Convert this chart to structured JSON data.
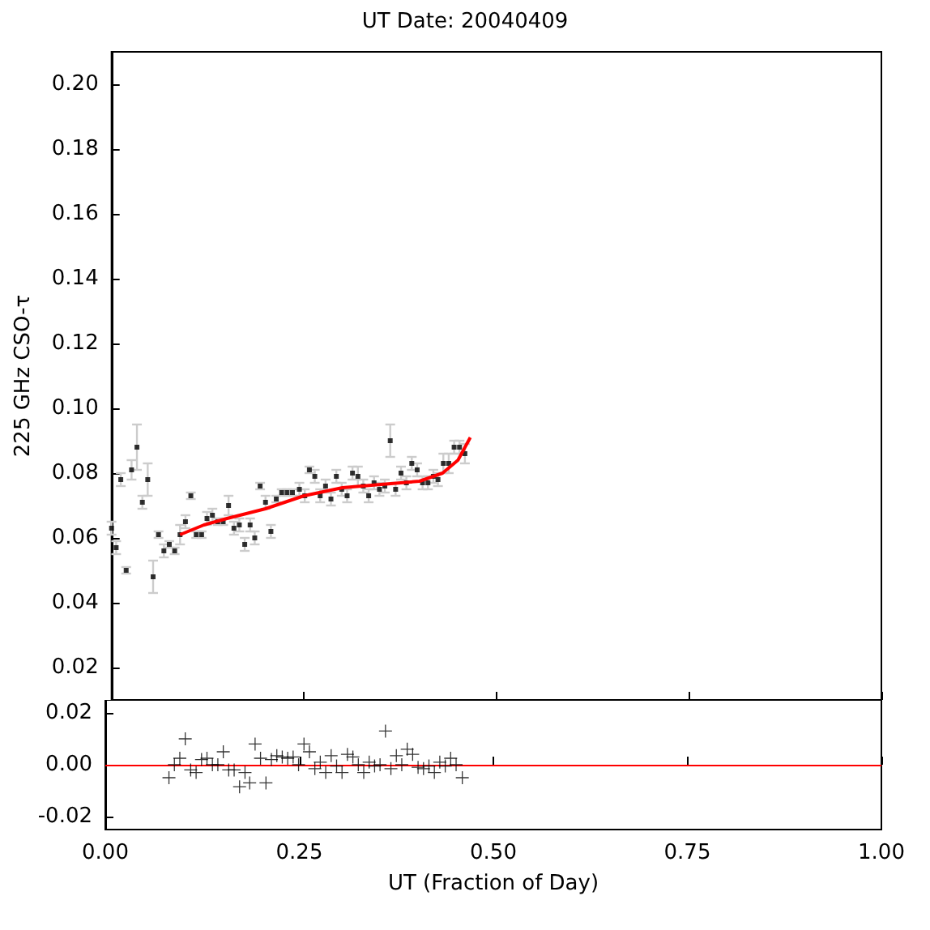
{
  "chart_data": [
    {
      "type": "scatter",
      "title": "UT Date: 20040409",
      "ylabel": "225 GHz CSO-τ",
      "xlim": [
        0,
        1
      ],
      "xticks": [
        {
          "value": 0,
          "label": null
        },
        {
          "value": 0.25,
          "label": null
        },
        {
          "value": 0.5,
          "label": null
        },
        {
          "value": 0.75,
          "label": null
        },
        {
          "value": 1,
          "label": null
        }
      ],
      "ylim": [
        0.01,
        0.21
      ],
      "yticks": [
        0.02,
        0.04,
        0.06,
        0.08,
        {
          "value": 0.1,
          "label": "0.10"
        },
        0.12,
        0.14,
        0.16,
        0.18,
        {
          "value": 0.2,
          "label": "0.20"
        }
      ],
      "tick_labels": "y",
      "series": [
        {
          "color": "#000000",
          "marker": "square",
          "x": [
            0,
            0.006,
            0.012,
            0.019,
            0.026,
            0.033,
            0.04,
            0.047,
            0.054,
            0.061,
            0.068,
            0.075,
            0.082,
            0.089,
            0.096,
            0.103,
            0.11,
            0.117,
            0.124,
            0.131,
            0.138,
            0.145,
            0.152,
            0.159,
            0.166,
            0.173,
            0.18,
            0.186,
            0.193,
            0.2,
            0.207,
            0.214,
            0.221,
            0.228,
            0.235,
            0.244,
            0.251,
            0.257,
            0.264,
            0.271,
            0.278,
            0.285,
            0.292,
            0.299,
            0.306,
            0.313,
            0.32,
            0.327,
            0.334,
            0.341,
            0.348,
            0.355,
            0.362,
            0.369,
            0.376,
            0.383,
            0.39,
            0.397,
            0.404,
            0.411,
            0.418,
            0.424,
            0.431,
            0.438,
            0.445,
            0.452,
            0.459
          ],
          "values": [
            0.063,
            0.057,
            0.078,
            0.05,
            0.081,
            0.088,
            0.071,
            0.078,
            0.048,
            0.061,
            0.056,
            0.058,
            0.056,
            0.061,
            0.065,
            0.073,
            0.061,
            0.061,
            0.066,
            0.067,
            0.065,
            0.065,
            0.07,
            0.063,
            0.064,
            0.058,
            0.064,
            0.06,
            0.076,
            0.071,
            0.062,
            0.072,
            0.074,
            0.074,
            0.074,
            0.075,
            0.073,
            0.081,
            0.079,
            0.073,
            0.076,
            0.072,
            0.079,
            0.075,
            0.073,
            0.08,
            0.079,
            0.076,
            0.073,
            0.077,
            0.075,
            0.076,
            0.09,
            0.075,
            0.08,
            0.077,
            0.083,
            0.081,
            0.077,
            0.077,
            0.079,
            0.078,
            0.083,
            0.083,
            0.088,
            0.088,
            0.086
          ],
          "errors": [
            0.002,
            0.002,
            0.002,
            0.001,
            0.003,
            0.007,
            0.002,
            0.005,
            0.005,
            0.001,
            0.002,
            0.001,
            0.001,
            0.003,
            0.002,
            0.001,
            0.001,
            0.001,
            0.002,
            0.002,
            0.001,
            0.001,
            0.003,
            0.002,
            0.002,
            0.002,
            0.002,
            0.002,
            0.001,
            0.002,
            0.002,
            0.001,
            0.001,
            0.001,
            0.001,
            0.002,
            0.002,
            0.001,
            0.002,
            0.002,
            0.002,
            0.002,
            0.002,
            0.002,
            0.002,
            0.002,
            0.003,
            0.002,
            0.002,
            0.002,
            0.002,
            0.002,
            0.005,
            0.002,
            0.002,
            0.002,
            0.002,
            0.002,
            0.002,
            0.002,
            0.002,
            0.002,
            0.003,
            0.003,
            0.002,
            0.002,
            0.003
          ]
        },
        {
          "type": "line",
          "color": "#ff0000",
          "marker": "none",
          "line_style": "solid",
          "x": [
            0.089,
            0.12,
            0.15,
            0.2,
            0.25,
            0.3,
            0.35,
            0.4,
            0.43,
            0.45,
            0.466
          ],
          "values": [
            0.061,
            0.064,
            0.066,
            0.069,
            0.073,
            0.0755,
            0.0765,
            0.0775,
            0.08,
            0.084,
            0.091
          ]
        }
      ]
    },
    {
      "type": "scatter",
      "xlabel": "UT (Fraction of Day)",
      "xlim": [
        0,
        1
      ],
      "xticks": [
        {
          "value": 0,
          "label": "0.00"
        },
        0.25,
        {
          "value": 0.5,
          "label": "0.50"
        },
        0.75,
        {
          "value": 1,
          "label": "1.00"
        }
      ],
      "ylim": [
        -0.025,
        0.025
      ],
      "yticks": [
        {
          "value": -0.02,
          "label": "-0.02"
        },
        {
          "value": 0,
          "label": "0.00"
        },
        0.02
      ],
      "ref_lines": [
        {
          "axis": "y",
          "value": 0,
          "color": "#ff0000"
        }
      ],
      "series": [
        {
          "color": "#000000",
          "marker": "cross",
          "x": [
            0.082,
            0.089,
            0.096,
            0.103,
            0.11,
            0.117,
            0.124,
            0.131,
            0.138,
            0.145,
            0.152,
            0.159,
            0.166,
            0.173,
            0.18,
            0.186,
            0.193,
            0.2,
            0.207,
            0.214,
            0.221,
            0.228,
            0.235,
            0.242,
            0.249,
            0.256,
            0.263,
            0.27,
            0.277,
            0.284,
            0.291,
            0.298,
            0.305,
            0.312,
            0.319,
            0.326,
            0.333,
            0.34,
            0.347,
            0.354,
            0.361,
            0.368,
            0.375,
            0.382,
            0.389,
            0.396,
            0.403,
            0.41,
            0.417,
            0.424,
            0.431,
            0.438,
            0.445,
            0.452,
            0.46
          ],
          "values": [
            -0.005,
            0,
            0.0025,
            0.01,
            -0.002,
            -0.003,
            0.002,
            0.0025,
            0,
            0,
            0.005,
            -0.002,
            -0.002,
            -0.0085,
            -0.003,
            -0.007,
            0.008,
            0.0025,
            -0.007,
            0.002,
            0.0035,
            0.003,
            0.0025,
            0.003,
            0,
            0.008,
            0.005,
            -0.0015,
            0.001,
            -0.003,
            0.0035,
            -0.0005,
            -0.003,
            0.004,
            0.003,
            0,
            -0.003,
            0.001,
            -0.0005,
            0,
            0.013,
            -0.0015,
            0.0035,
            0,
            0.006,
            0.004,
            -0.001,
            -0.0015,
            -0.0005,
            -0.003,
            0.001,
            -0.0005,
            0.0025,
            0,
            -0.005
          ]
        }
      ]
    }
  ]
}
